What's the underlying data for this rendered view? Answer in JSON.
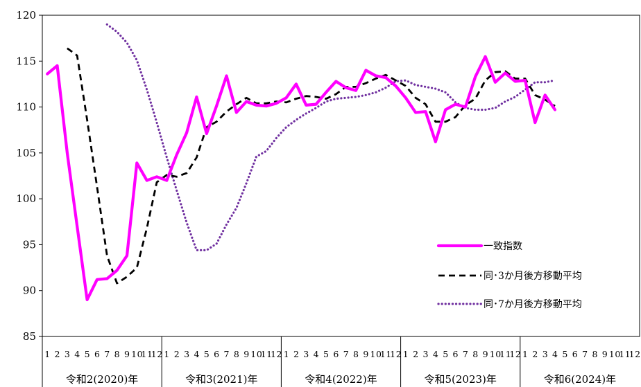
{
  "chart_data": {
    "type": "line",
    "y_ticks": [
      85,
      90,
      95,
      100,
      105,
      110,
      115,
      120
    ],
    "ylim": [
      85,
      120
    ],
    "grid": false,
    "legend_position": "lower-right",
    "month_labels": [
      "1",
      "2",
      "3",
      "4",
      "5",
      "6",
      "7",
      "8",
      "9",
      "10",
      "11",
      "12"
    ],
    "year_groups": [
      {
        "label": "令和2(2020)年",
        "months": 12
      },
      {
        "label": "令和3(2021)年",
        "months": 12
      },
      {
        "label": "令和4(2022)年",
        "months": 12
      },
      {
        "label": "令和5(2023)年",
        "months": 12
      },
      {
        "label": "令和6(2024)年",
        "months": 12
      }
    ],
    "series": [
      {
        "name": "一致指数",
        "color": "#ff00ff",
        "style": "solid",
        "values": [
          113.6,
          114.5,
          105.0,
          97.0,
          89.0,
          91.2,
          91.3,
          92.2,
          93.8,
          103.9,
          102.0,
          102.4,
          102.0,
          104.8,
          107.2,
          111.1,
          107.1,
          110.1,
          113.4,
          109.4,
          110.6,
          110.2,
          110.1,
          110.4,
          111.0,
          112.5,
          110.2,
          110.3,
          111.6,
          112.8,
          112.1,
          111.8,
          114.0,
          113.4,
          113.2,
          112.3,
          111.0,
          109.4,
          109.5,
          106.2,
          109.7,
          110.3,
          110.0,
          113.3,
          115.5,
          112.7,
          113.7,
          112.8,
          112.9,
          108.3,
          111.3,
          109.7
        ]
      },
      {
        "name": "同･3か月後方移動平均",
        "color": "#000000",
        "style": "dashed",
        "values": [
          null,
          null,
          116.4,
          115.6,
          108.6,
          101.3,
          93.8,
          90.8,
          91.5,
          92.5,
          96.8,
          101.8,
          102.6,
          102.4,
          102.8,
          104.5,
          107.8,
          108.4,
          109.5,
          110.3,
          111.0,
          110.4,
          110.4,
          110.6,
          110.5,
          110.9,
          111.2,
          111.1,
          110.9,
          111.4,
          112.2,
          112.2,
          112.6,
          113.1,
          113.5,
          112.9,
          112.3,
          111.0,
          110.3,
          108.4,
          108.4,
          108.9,
          110.2,
          110.9,
          112.9,
          113.8,
          113.9,
          113.1,
          113.1,
          111.3,
          110.8,
          110.1
        ]
      },
      {
        "name": "同･7か月後方移動平均",
        "color": "#7030a0",
        "style": "dotted",
        "values": [
          null,
          null,
          null,
          null,
          null,
          null,
          119.0,
          118.2,
          117.0,
          115.1,
          111.9,
          108.3,
          104.5,
          100.9,
          97.4,
          94.4,
          94.4,
          95.1,
          97.2,
          99.0,
          101.7,
          104.6,
          105.2,
          106.6,
          107.8,
          108.6,
          109.3,
          109.9,
          110.6,
          110.9,
          111.0,
          111.1,
          111.3,
          111.6,
          112.1,
          112.8,
          112.9,
          112.4,
          112.2,
          112.0,
          111.6,
          110.5,
          109.9,
          109.7,
          109.7,
          109.9,
          110.6,
          111.1,
          111.9,
          112.7,
          112.7,
          112.9
        ]
      }
    ]
  }
}
